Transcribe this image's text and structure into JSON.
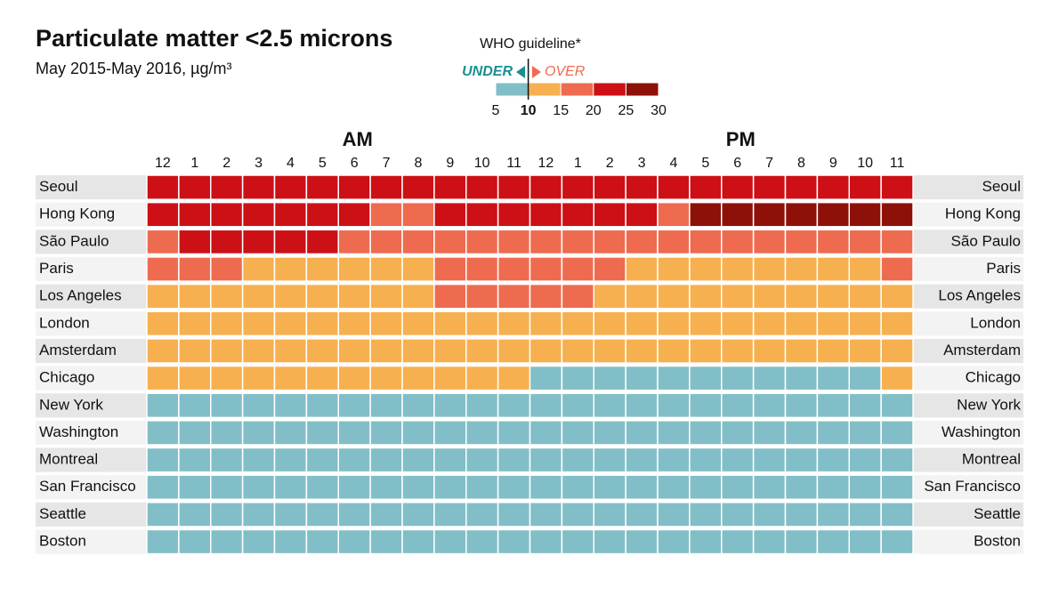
{
  "chart_data": {
    "type": "heatmap",
    "title": "Particulate matter <2.5 microns",
    "subtitle": "May 2015-May 2016, µg/m³",
    "legend_title": "WHO guideline*",
    "under_label": "UNDER",
    "over_label": "OVER",
    "guideline": 10,
    "color_scale": {
      "bins": [
        5,
        10,
        15,
        20,
        25,
        30
      ],
      "colors": [
        "#82bec7",
        "#f7b04f",
        "#ee6b50",
        "#cd0f16",
        "#8e1109"
      ]
    },
    "period_labels": [
      "AM",
      "PM"
    ],
    "columns": [
      "12",
      "1",
      "2",
      "3",
      "4",
      "5",
      "6",
      "7",
      "8",
      "9",
      "10",
      "11",
      "12",
      "1",
      "2",
      "3",
      "4",
      "5",
      "6",
      "7",
      "8",
      "9",
      "10",
      "11"
    ],
    "rows": [
      "Seoul",
      "Hong Kong",
      "São Paulo",
      "Paris",
      "Los Angeles",
      "London",
      "Amsterdam",
      "Chicago",
      "New York",
      "Washington",
      "Montreal",
      "San Francisco",
      "Seattle",
      "Boston"
    ],
    "values": [
      [
        22.5,
        22.5,
        22.5,
        22.5,
        22.5,
        22.5,
        22.5,
        22.5,
        22.5,
        22.5,
        22.5,
        22.5,
        22.5,
        22.5,
        22.5,
        22.5,
        22.5,
        22.5,
        22.5,
        22.5,
        22.5,
        22.5,
        22.5,
        22.5
      ],
      [
        22.5,
        22.5,
        22.5,
        22.5,
        22.5,
        22.5,
        22.5,
        17.5,
        17.5,
        22.5,
        22.5,
        22.5,
        22.5,
        22.5,
        22.5,
        22.5,
        17.5,
        27.5,
        27.5,
        27.5,
        27.5,
        27.5,
        27.5,
        27.5
      ],
      [
        17.5,
        22.5,
        22.5,
        22.5,
        22.5,
        22.5,
        17.5,
        17.5,
        17.5,
        17.5,
        17.5,
        17.5,
        17.5,
        17.5,
        17.5,
        17.5,
        17.5,
        17.5,
        17.5,
        17.5,
        17.5,
        17.5,
        17.5,
        17.5
      ],
      [
        17.5,
        17.5,
        17.5,
        12.5,
        12.5,
        12.5,
        12.5,
        12.5,
        12.5,
        17.5,
        17.5,
        17.5,
        17.5,
        17.5,
        17.5,
        12.5,
        12.5,
        12.5,
        12.5,
        12.5,
        12.5,
        12.5,
        12.5,
        17.5
      ],
      [
        12.5,
        12.5,
        12.5,
        12.5,
        12.5,
        12.5,
        12.5,
        12.5,
        12.5,
        17.5,
        17.5,
        17.5,
        17.5,
        17.5,
        12.5,
        12.5,
        12.5,
        12.5,
        12.5,
        12.5,
        12.5,
        12.5,
        12.5,
        12.5
      ],
      [
        12.5,
        12.5,
        12.5,
        12.5,
        12.5,
        12.5,
        12.5,
        12.5,
        12.5,
        12.5,
        12.5,
        12.5,
        12.5,
        12.5,
        12.5,
        12.5,
        12.5,
        12.5,
        12.5,
        12.5,
        12.5,
        12.5,
        12.5,
        12.5
      ],
      [
        12.5,
        12.5,
        12.5,
        12.5,
        12.5,
        12.5,
        12.5,
        12.5,
        12.5,
        12.5,
        12.5,
        12.5,
        12.5,
        12.5,
        12.5,
        12.5,
        12.5,
        12.5,
        12.5,
        12.5,
        12.5,
        12.5,
        12.5,
        12.5
      ],
      [
        12.5,
        12.5,
        12.5,
        12.5,
        12.5,
        12.5,
        12.5,
        12.5,
        12.5,
        12.5,
        12.5,
        12.5,
        7.5,
        7.5,
        7.5,
        7.5,
        7.5,
        7.5,
        7.5,
        7.5,
        7.5,
        7.5,
        7.5,
        12.5
      ],
      [
        7.5,
        7.5,
        7.5,
        7.5,
        7.5,
        7.5,
        7.5,
        7.5,
        7.5,
        7.5,
        7.5,
        7.5,
        7.5,
        7.5,
        7.5,
        7.5,
        7.5,
        7.5,
        7.5,
        7.5,
        7.5,
        7.5,
        7.5,
        7.5
      ],
      [
        7.5,
        7.5,
        7.5,
        7.5,
        7.5,
        7.5,
        7.5,
        7.5,
        7.5,
        7.5,
        7.5,
        7.5,
        7.5,
        7.5,
        7.5,
        7.5,
        7.5,
        7.5,
        7.5,
        7.5,
        7.5,
        7.5,
        7.5,
        7.5
      ],
      [
        7.5,
        7.5,
        7.5,
        7.5,
        7.5,
        7.5,
        7.5,
        7.5,
        7.5,
        7.5,
        7.5,
        7.5,
        7.5,
        7.5,
        7.5,
        7.5,
        7.5,
        7.5,
        7.5,
        7.5,
        7.5,
        7.5,
        7.5,
        7.5
      ],
      [
        7.5,
        7.5,
        7.5,
        7.5,
        7.5,
        7.5,
        7.5,
        7.5,
        7.5,
        7.5,
        7.5,
        7.5,
        7.5,
        7.5,
        7.5,
        7.5,
        7.5,
        7.5,
        7.5,
        7.5,
        7.5,
        7.5,
        7.5,
        7.5
      ],
      [
        7.5,
        7.5,
        7.5,
        7.5,
        7.5,
        7.5,
        7.5,
        7.5,
        7.5,
        7.5,
        7.5,
        7.5,
        7.5,
        7.5,
        7.5,
        7.5,
        7.5,
        7.5,
        7.5,
        7.5,
        7.5,
        7.5,
        7.5,
        7.5
      ],
      [
        7.5,
        7.5,
        7.5,
        7.5,
        7.5,
        7.5,
        7.5,
        7.5,
        7.5,
        7.5,
        7.5,
        7.5,
        7.5,
        7.5,
        7.5,
        7.5,
        7.5,
        7.5,
        7.5,
        7.5,
        7.5,
        7.5,
        7.5,
        7.5
      ]
    ]
  }
}
